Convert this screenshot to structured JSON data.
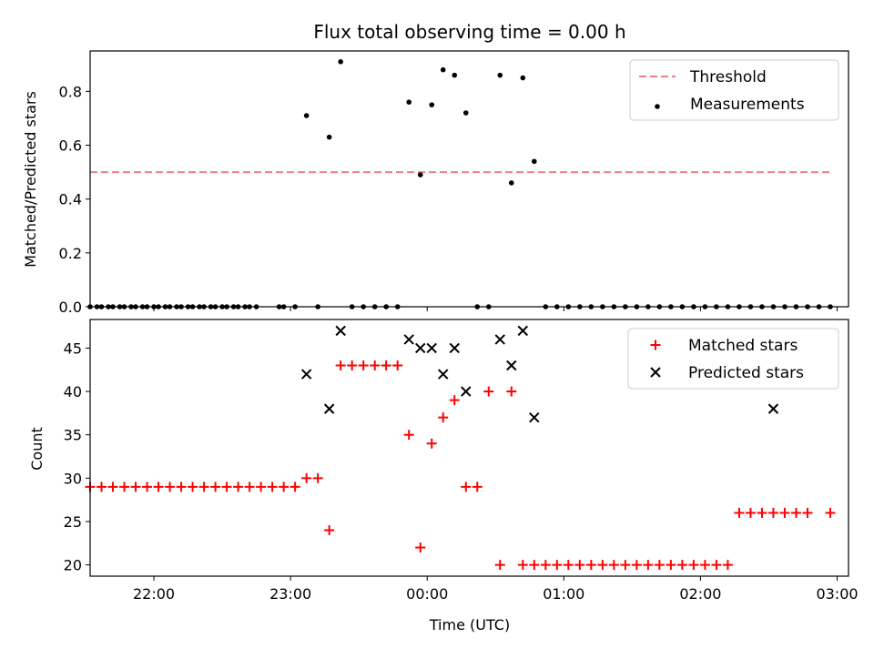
{
  "chart_data": [
    {
      "type": "scatter",
      "title": "Flux total observing time = 0.00 h",
      "xlabel": "",
      "ylabel": "Matched/Predicted stars",
      "xlim": [
        "21:32",
        "03:05"
      ],
      "ylim": [
        0,
        0.95
      ],
      "yticks": [
        "0.0",
        "0.2",
        "0.4",
        "0.6",
        "0.8"
      ],
      "ytick_values": [
        0,
        0.2,
        0.4,
        0.6,
        0.8
      ],
      "legend": {
        "position": "top-right",
        "entries": [
          "Threshold",
          "Measurements"
        ]
      },
      "threshold": {
        "name": "Threshold",
        "value": 0.5,
        "x_start": "21:32",
        "x_end": "02:57",
        "color": "#f08080",
        "style": "dashed"
      },
      "series": [
        {
          "name": "Measurements",
          "color": "#000000",
          "marker": "dot",
          "points": [
            [
              "21:32",
              0
            ],
            [
              "21:35",
              0
            ],
            [
              "21:37",
              0
            ],
            [
              "21:40",
              0
            ],
            [
              "21:42",
              0
            ],
            [
              "21:45",
              0
            ],
            [
              "21:47",
              0
            ],
            [
              "21:50",
              0
            ],
            [
              "21:52",
              0
            ],
            [
              "21:55",
              0
            ],
            [
              "21:57",
              0
            ],
            [
              "22:00",
              0
            ],
            [
              "22:02",
              0
            ],
            [
              "22:05",
              0
            ],
            [
              "22:07",
              0
            ],
            [
              "22:10",
              0
            ],
            [
              "22:12",
              0
            ],
            [
              "22:15",
              0
            ],
            [
              "22:17",
              0
            ],
            [
              "22:20",
              0
            ],
            [
              "22:22",
              0
            ],
            [
              "22:25",
              0
            ],
            [
              "22:27",
              0
            ],
            [
              "22:30",
              0
            ],
            [
              "22:32",
              0
            ],
            [
              "22:35",
              0
            ],
            [
              "22:37",
              0
            ],
            [
              "22:40",
              0
            ],
            [
              "22:42",
              0
            ],
            [
              "22:45",
              0
            ],
            [
              "22:55",
              0
            ],
            [
              "22:57",
              0
            ],
            [
              "23:02",
              0
            ],
            [
              "23:07",
              0.71
            ],
            [
              "23:12",
              0
            ],
            [
              "23:17",
              0.63
            ],
            [
              "23:22",
              0.91
            ],
            [
              "23:27",
              0
            ],
            [
              "23:32",
              0
            ],
            [
              "23:37",
              0
            ],
            [
              "23:42",
              0
            ],
            [
              "23:47",
              0
            ],
            [
              "23:52",
              0.76
            ],
            [
              "23:57",
              0.49
            ],
            [
              "00:02",
              0.75
            ],
            [
              "00:07",
              0.88
            ],
            [
              "00:12",
              0.86
            ],
            [
              "00:17",
              0.72
            ],
            [
              "00:22",
              0
            ],
            [
              "00:27",
              0
            ],
            [
              "00:32",
              0.86
            ],
            [
              "00:37",
              0.46
            ],
            [
              "00:42",
              0.85
            ],
            [
              "00:47",
              0.54
            ],
            [
              "00:52",
              0
            ],
            [
              "00:57",
              0
            ],
            [
              "01:02",
              0
            ],
            [
              "01:07",
              0
            ],
            [
              "01:12",
              0
            ],
            [
              "01:17",
              0
            ],
            [
              "01:22",
              0
            ],
            [
              "01:27",
              0
            ],
            [
              "01:32",
              0
            ],
            [
              "01:37",
              0
            ],
            [
              "01:42",
              0
            ],
            [
              "01:47",
              0
            ],
            [
              "01:52",
              0
            ],
            [
              "01:57",
              0
            ],
            [
              "02:02",
              0
            ],
            [
              "02:07",
              0
            ],
            [
              "02:12",
              0
            ],
            [
              "02:17",
              0
            ],
            [
              "02:22",
              0
            ],
            [
              "02:27",
              0
            ],
            [
              "02:32",
              0
            ],
            [
              "02:37",
              0
            ],
            [
              "02:42",
              0
            ],
            [
              "02:47",
              0
            ],
            [
              "02:52",
              0
            ],
            [
              "02:57",
              0
            ]
          ]
        }
      ]
    },
    {
      "type": "scatter",
      "title": "",
      "xlabel": "Time (UTC)",
      "ylabel": "Count",
      "xlim": [
        "21:32",
        "03:05"
      ],
      "ylim": [
        18.7,
        48.3
      ],
      "yticks": [
        "20",
        "25",
        "30",
        "35",
        "40",
        "45"
      ],
      "ytick_values": [
        20,
        25,
        30,
        35,
        40,
        45
      ],
      "xticks": [
        "22:00",
        "23:00",
        "00:00",
        "01:00",
        "02:00",
        "03:00"
      ],
      "legend": {
        "position": "top-right",
        "entries": [
          "Matched stars",
          "Predicted stars"
        ]
      },
      "series": [
        {
          "name": "Matched stars",
          "color": "#ff0000",
          "marker": "plus",
          "points": [
            [
              "21:32",
              29
            ],
            [
              "21:37",
              29
            ],
            [
              "21:42",
              29
            ],
            [
              "21:47",
              29
            ],
            [
              "21:52",
              29
            ],
            [
              "21:57",
              29
            ],
            [
              "22:02",
              29
            ],
            [
              "22:07",
              29
            ],
            [
              "22:12",
              29
            ],
            [
              "22:17",
              29
            ],
            [
              "22:22",
              29
            ],
            [
              "22:27",
              29
            ],
            [
              "22:32",
              29
            ],
            [
              "22:37",
              29
            ],
            [
              "22:42",
              29
            ],
            [
              "22:47",
              29
            ],
            [
              "22:52",
              29
            ],
            [
              "22:57",
              29
            ],
            [
              "23:02",
              29
            ],
            [
              "23:07",
              30
            ],
            [
              "23:12",
              30
            ],
            [
              "23:17",
              24
            ],
            [
              "23:22",
              43
            ],
            [
              "23:27",
              43
            ],
            [
              "23:32",
              43
            ],
            [
              "23:37",
              43
            ],
            [
              "23:42",
              43
            ],
            [
              "23:47",
              43
            ],
            [
              "23:52",
              35
            ],
            [
              "23:57",
              22
            ],
            [
              "00:02",
              34
            ],
            [
              "00:07",
              37
            ],
            [
              "00:12",
              39
            ],
            [
              "00:17",
              29
            ],
            [
              "00:22",
              29
            ],
            [
              "00:27",
              40
            ],
            [
              "00:32",
              20
            ],
            [
              "00:37",
              40
            ],
            [
              "00:42",
              20
            ],
            [
              "00:47",
              20
            ],
            [
              "00:52",
              20
            ],
            [
              "00:57",
              20
            ],
            [
              "01:02",
              20
            ],
            [
              "01:07",
              20
            ],
            [
              "01:12",
              20
            ],
            [
              "01:17",
              20
            ],
            [
              "01:22",
              20
            ],
            [
              "01:27",
              20
            ],
            [
              "01:32",
              20
            ],
            [
              "01:37",
              20
            ],
            [
              "01:42",
              20
            ],
            [
              "01:47",
              20
            ],
            [
              "01:52",
              20
            ],
            [
              "01:57",
              20
            ],
            [
              "02:02",
              20
            ],
            [
              "02:07",
              20
            ],
            [
              "02:12",
              20
            ],
            [
              "02:17",
              26
            ],
            [
              "02:22",
              26
            ],
            [
              "02:27",
              26
            ],
            [
              "02:32",
              26
            ],
            [
              "02:37",
              26
            ],
            [
              "02:42",
              26
            ],
            [
              "02:47",
              26
            ],
            [
              "02:57",
              26
            ]
          ]
        },
        {
          "name": "Predicted stars",
          "color": "#000000",
          "marker": "x",
          "points": [
            [
              "23:07",
              42
            ],
            [
              "23:17",
              38
            ],
            [
              "23:22",
              47
            ],
            [
              "23:52",
              46
            ],
            [
              "23:57",
              45
            ],
            [
              "00:02",
              45
            ],
            [
              "00:07",
              42
            ],
            [
              "00:12",
              45
            ],
            [
              "00:17",
              40
            ],
            [
              "00:32",
              46
            ],
            [
              "00:37",
              43
            ],
            [
              "00:42",
              47
            ],
            [
              "00:47",
              37
            ],
            [
              "02:32",
              38
            ]
          ]
        }
      ]
    }
  ]
}
